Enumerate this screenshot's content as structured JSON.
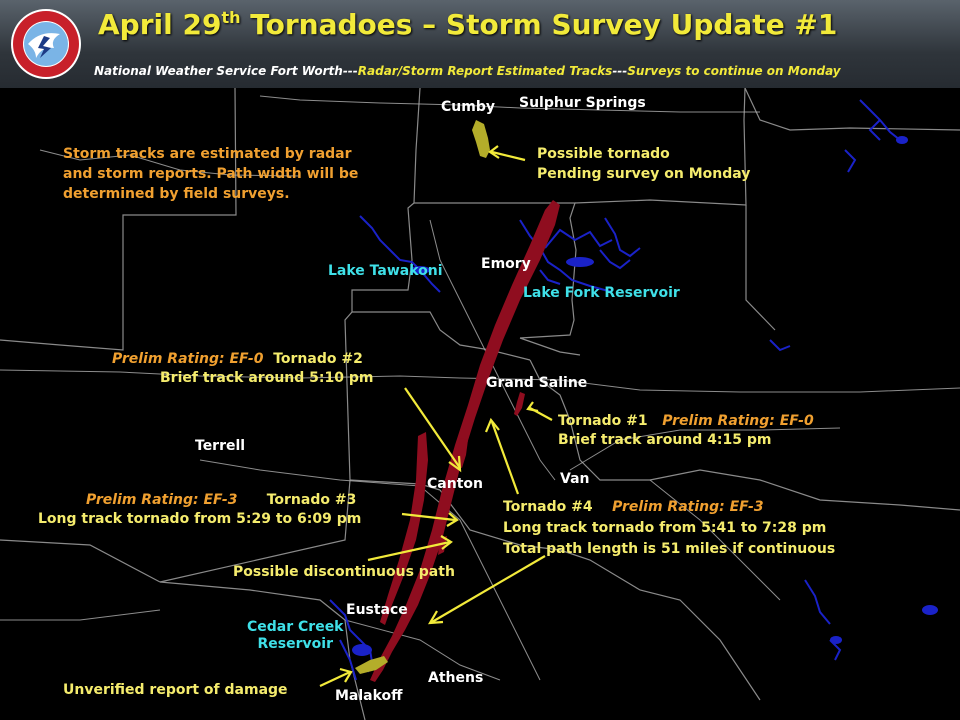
{
  "header": {
    "title_main": "April 29",
    "title_sup": "th",
    "title_rest": " Tornadoes – Storm Survey Update #1",
    "subtitle_a": "National Weather Service Fort Worth---",
    "subtitle_b": "Radar/Storm Report Estimated Tracks",
    "subtitle_c": "---",
    "subtitle_d": "Surveys to continue on Monday",
    "logo_text": "NATIONAL WEATHER SERVICE"
  },
  "map": {
    "note": [
      "Storm tracks are estimated by radar",
      "and storm reports. Path width will be",
      "determined by field surveys."
    ],
    "towns": {
      "cumby": "Cumby",
      "sulphur_springs": "Sulphur Springs",
      "emory": "Emory",
      "grand_saline": "Grand Saline",
      "terrell": "Terrell",
      "canton": "Canton",
      "van": "Van",
      "eustace": "Eustace",
      "malakoff": "Malakoff",
      "athens": "Athens"
    },
    "lakes": {
      "tawakoni": "Lake Tawakoni",
      "lake_fork": "Lake Fork Reservoir",
      "cedar_creek_1": "Cedar Creek",
      "cedar_creek_2": "Reservoir"
    },
    "annotations": {
      "possible_tornado": "Possible tornado",
      "pending_survey": "Pending survey on Monday",
      "t2_rating": "Prelim Rating: EF-0",
      "t2_name": "Tornado #2",
      "t2_desc": "Brief track around 5:10 pm",
      "t1_name": "Tornado #1",
      "t1_rating": "Prelim Rating: EF-0",
      "t1_desc": "Brief track around 4:15 pm",
      "t3_rating": "Prelim Rating: EF-3",
      "t3_name": "Tornado #3",
      "t3_desc": "Long track tornado from 5:29 to 6:09 pm",
      "t4_name": "Tornado #4",
      "t4_rating": "Prelim Rating: EF-3",
      "t4_desc": "Long track tornado from 5:41 to 7:28 pm",
      "t4_length": "Total path length is 51 miles if continuous",
      "discontinuous": "Possible discontinuous path",
      "unverified": "Unverified report of damage"
    }
  },
  "colors": {
    "track": "#8f0d1f",
    "unverified_track": "#b4ad2a",
    "title": "#f2ea3a",
    "water": "#1a22c8",
    "boundary": "#8a8a8a",
    "road": "#b0b0b0"
  }
}
